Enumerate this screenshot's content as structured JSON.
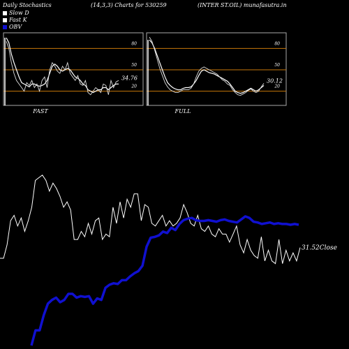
{
  "header": {
    "title": "Daily Stochastics",
    "params": "(14,3,3) Charts for 530259",
    "company": "(INTER ST.OIL) munafasutra.in"
  },
  "legend": [
    {
      "label": "Slow  D",
      "color": "#ffffff",
      "icon": "square-swatch"
    },
    {
      "label": "Fast K",
      "color": "#ffffff",
      "icon": "square-swatch"
    },
    {
      "label": "OBV",
      "color": "#1010d0",
      "icon": "square-swatch"
    }
  ],
  "colors": {
    "background": "#000000",
    "panel_border": "#aaaaaa",
    "level_line": "#c8780a",
    "price_line": "#ffffff",
    "obv_line": "#1010d0"
  },
  "chart_data": [
    {
      "type": "line",
      "title": "FAST",
      "yticks": [
        20,
        50,
        80
      ],
      "ylim": [
        0,
        100
      ],
      "last_value_label": "34.76",
      "series": [
        {
          "values": [
            95,
            88,
            72,
            60,
            50,
            40,
            32,
            30,
            28,
            26,
            30,
            30,
            28,
            27,
            28,
            30,
            35,
            45,
            55,
            58,
            55,
            50,
            48,
            50,
            52,
            50,
            45,
            40,
            38,
            35,
            30,
            28,
            22,
            20,
            18,
            20,
            22,
            22,
            25,
            25,
            22,
            25,
            28,
            30,
            30
          ]
        },
        {
          "values": [
            90,
            80,
            60,
            45,
            35,
            30,
            25,
            20,
            32,
            28,
            35,
            25,
            30,
            20,
            35,
            40,
            25,
            50,
            60,
            55,
            48,
            45,
            55,
            50,
            60,
            45,
            40,
            35,
            42,
            30,
            28,
            35,
            18,
            15,
            20,
            25,
            22,
            18,
            30,
            28,
            15,
            35,
            25,
            33,
            35
          ]
        }
      ]
    },
    {
      "type": "line",
      "title": "FULL",
      "yticks": [
        20,
        50,
        80
      ],
      "ylim": [
        0,
        100
      ],
      "last_value_label": "30.12",
      "series": [
        {
          "values": [
            92,
            88,
            80,
            70,
            60,
            50,
            40,
            32,
            28,
            25,
            23,
            22,
            22,
            24,
            25,
            25,
            26,
            30,
            35,
            42,
            48,
            50,
            48,
            46,
            45,
            44,
            42,
            40,
            38,
            36,
            34,
            30,
            25,
            20,
            18,
            17,
            18,
            20,
            22,
            24,
            22,
            20,
            22,
            25,
            28
          ]
        },
        {
          "values": [
            96,
            90,
            78,
            65,
            52,
            42,
            32,
            26,
            22,
            20,
            18,
            18,
            20,
            22,
            22,
            22,
            24,
            30,
            40,
            48,
            52,
            54,
            52,
            50,
            48,
            46,
            44,
            40,
            36,
            34,
            30,
            28,
            22,
            18,
            15,
            14,
            16,
            18,
            21,
            23,
            20,
            18,
            20,
            26,
            31
          ]
        }
      ]
    },
    {
      "type": "line",
      "title": "",
      "last_value_label": "31.52Close",
      "series": [
        {
          "values": [
            36.5,
            36.5,
            39.0,
            43.5,
            44.5,
            42.5,
            44.0,
            41.5,
            43.5,
            46.0,
            51.0,
            51.5,
            52.0,
            51.0,
            49.0,
            50.5,
            49.5,
            48.0,
            46.0,
            47.0,
            45.5,
            40.0,
            40.0,
            41.5,
            40.5,
            43.0,
            41.0,
            43.5,
            44.0,
            40.0,
            41.0,
            40.5,
            46.0,
            43.0,
            47.0,
            44.0,
            47.5,
            46.0,
            48.5,
            48.5,
            43.5,
            46.5,
            46.0,
            43.0,
            42.5,
            43.5,
            44.5,
            42.5,
            43.5,
            42.5,
            43.0,
            44.0,
            46.5,
            45.0,
            43.0,
            42.5,
            44.5,
            42.0,
            41.5,
            42.5,
            41.0,
            40.5,
            42.0,
            41.0,
            41.0,
            39.5,
            41.0,
            42.5,
            39.0,
            37.5,
            40.0,
            38.0,
            37.0,
            36.5,
            40.5,
            36.0,
            38.0,
            36.0,
            35.5,
            40.0,
            35.5,
            38.0,
            36.0,
            37.5,
            36.0,
            38.5
          ]
        },
        {
          "name": "OBV",
          "values": [
            0,
            20,
            20,
            40,
            55,
            60,
            63,
            57,
            60,
            68,
            68,
            63,
            65,
            64,
            65,
            55,
            62,
            60,
            76,
            80,
            82,
            81,
            86,
            86,
            91,
            95,
            98,
            105,
            130,
            142,
            143,
            145,
            150,
            148,
            155,
            152,
            160,
            165,
            167,
            168,
            165,
            164,
            164,
            165,
            164,
            163,
            165,
            166,
            164,
            163,
            162,
            166,
            170,
            168,
            163,
            162,
            160,
            161,
            162,
            160,
            161,
            160,
            160,
            159,
            160,
            159
          ]
        }
      ]
    }
  ]
}
